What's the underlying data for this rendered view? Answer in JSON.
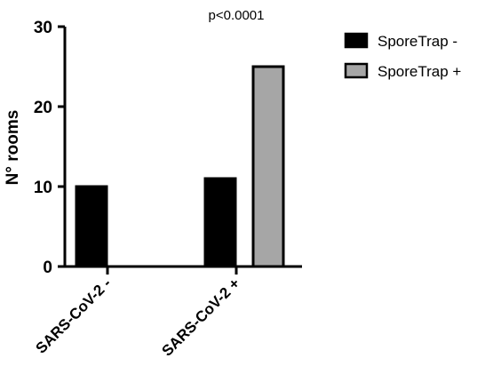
{
  "chart_data": {
    "type": "bar",
    "title": "",
    "xlabel": "",
    "ylabel": "N° rooms",
    "ylim": [
      0,
      30
    ],
    "yticks": [
      0,
      10,
      20,
      30
    ],
    "categories": [
      "SARS-CoV-2 -",
      "SARS-CoV-2 +"
    ],
    "series": [
      {
        "name": "SporeTrap -",
        "values": [
          10,
          11
        ],
        "color": "#000000"
      },
      {
        "name": "SporeTrap +",
        "values": [
          0,
          25
        ],
        "color": "#a6a6a6"
      }
    ],
    "annotation": "p<0.0001",
    "legend_position": "top-right",
    "grid": false
  }
}
